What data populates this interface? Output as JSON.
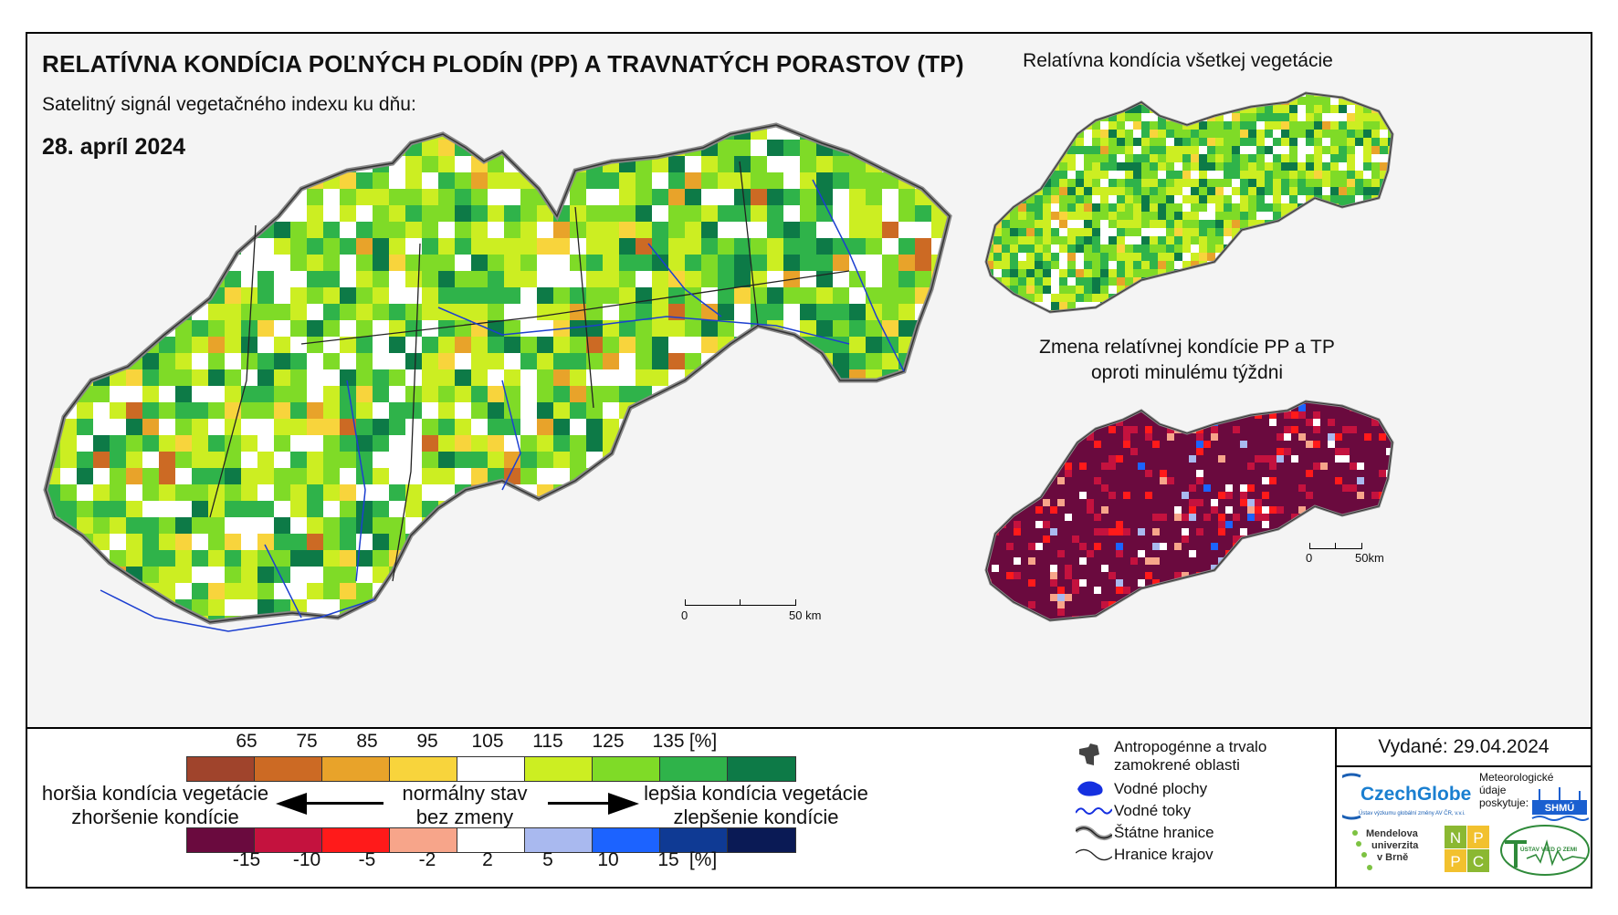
{
  "title": "RELATÍVNA KONDÍCIA POĽNÝCH PLODÍN (PP) A TRAVNATÝCH PORASTOV (TP)",
  "subtitle": "Satelitný signál vegetačného indexu ku dňu:",
  "date": "28. apríl 2024",
  "inset_top_title": "Relatívna kondícia všetkej vegetácie",
  "inset_bottom_title_line1": "Zmena relatívnej kondície PP a TP",
  "inset_bottom_title_line2": "oproti minulému týždni",
  "scale_main": {
    "zero": "0",
    "label": "50 km"
  },
  "scale_inset": {
    "zero": "0",
    "label": "50km"
  },
  "legend_condition": {
    "ticks": [
      "65",
      "75",
      "85",
      "95",
      "105",
      "115",
      "125",
      "135",
      "[%]"
    ],
    "colors": [
      "#a0442c",
      "#cc6a24",
      "#e8a32a",
      "#f8d43c",
      "#ffffff",
      "#ccee22",
      "#7fdb27",
      "#2fb34a",
      "#0d7a47"
    ]
  },
  "legend_change": {
    "ticks": [
      "-15",
      "-10",
      "-5",
      "-2",
      "2",
      "5",
      "10",
      "15",
      "[%]"
    ],
    "colors": [
      "#6a0a3e",
      "#c4123e",
      "#ff1a1a",
      "#f7a58a",
      "#ffffff",
      "#a9b9ef",
      "#1c63ff",
      "#0f3a94",
      "#0a1a55"
    ]
  },
  "legend_text": {
    "worse_line1": "horšia kondícia vegetácie",
    "worse_line2": "zhoršenie kondície",
    "normal_line1": "normálny stav",
    "normal_line2": "bez zmeny",
    "better_line1": "lepšia kondícia vegetácie",
    "better_line2": "zlepšenie kondície"
  },
  "map_key": {
    "anthropogenic_line1": "Antropogénne a trvalo",
    "anthropogenic_line2": "zamokrené oblasti",
    "water_bodies": "Vodné plochy",
    "rivers": "Vodné toky",
    "state_border": "Štátne hranice",
    "region_border": "Hranice krajov"
  },
  "issued": "Vydané: 29.04.2024",
  "logos": {
    "czechglobe": "CzechGlobe",
    "czechglobe_sub": "Ústav výzkumu globální změny AV ČR, v.v.i.",
    "shmu_line1": "Meteorologické",
    "shmu_line2": "údaje",
    "shmu_line3": "poskytuje:",
    "shmu": "SHMÚ",
    "mendel_line1": "Mendelova",
    "mendel_line2": "univerzita",
    "mendel_line3": "v Brně",
    "nppc": [
      "N",
      "P",
      "P",
      "C"
    ],
    "uvz": "ÚSTAV VIED O ZEMI"
  }
}
